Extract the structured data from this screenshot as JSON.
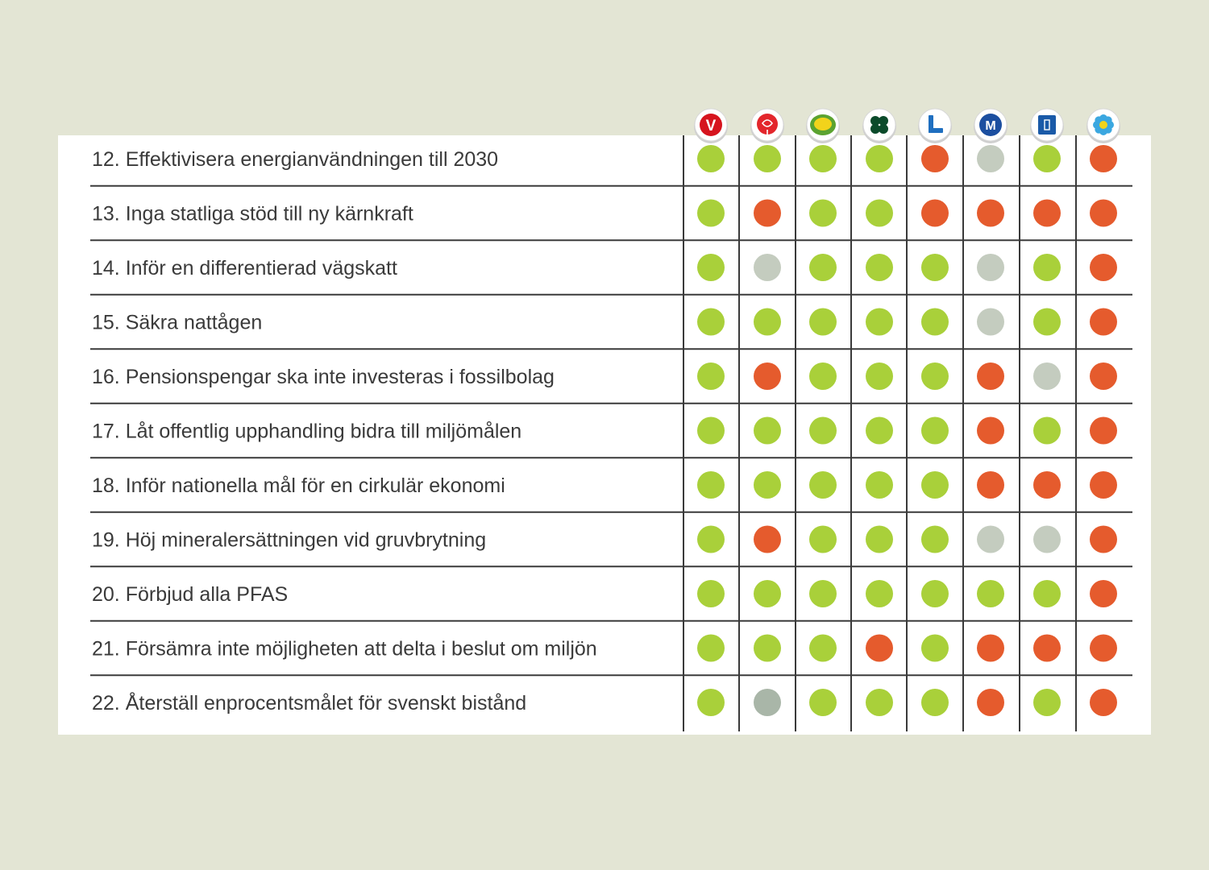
{
  "chart_data": {
    "type": "table",
    "title": "",
    "columns": [
      {
        "party": "V",
        "icon": "v-party-logo-icon",
        "color": "#d6141e",
        "glyph": "V"
      },
      {
        "party": "S",
        "icon": "s-rose-logo-icon",
        "color": "#e3262c",
        "glyph": ""
      },
      {
        "party": "MP",
        "icon": "mp-sunflower-logo-icon",
        "color": "#5ba331",
        "glyph": ""
      },
      {
        "party": "C",
        "icon": "c-clover-logo-icon",
        "color": "#0b4a2a",
        "glyph": ""
      },
      {
        "party": "L",
        "icon": "l-party-logo-icon",
        "color": "#1f6fc0",
        "glyph": "L"
      },
      {
        "party": "M",
        "icon": "m-party-logo-icon",
        "color": "#1c4fa0",
        "glyph": "M"
      },
      {
        "party": "KD",
        "icon": "kd-party-logo-icon",
        "color": "#1a5aa8",
        "glyph": ""
      },
      {
        "party": "SD",
        "icon": "sd-flower-logo-icon",
        "color": "#3ba7e0",
        "glyph": ""
      }
    ],
    "legend_colors": {
      "yes": "#a9d03a",
      "no": "#e55b2d",
      "neutral": "#c4ccbf",
      "neutral_dark": "#a9b6a8"
    },
    "rows": [
      {
        "label": "12. Effektivisera energianvändningen till 2030",
        "values": [
          "yes",
          "yes",
          "yes",
          "yes",
          "no",
          "neutral",
          "yes",
          "no"
        ]
      },
      {
        "label": "13. Inga statliga stöd till ny kärnkraft",
        "values": [
          "yes",
          "no",
          "yes",
          "yes",
          "no",
          "no",
          "no",
          "no"
        ]
      },
      {
        "label": "14. Inför en differentierad vägskatt",
        "values": [
          "yes",
          "neutral",
          "yes",
          "yes",
          "yes",
          "neutral",
          "yes",
          "no"
        ]
      },
      {
        "label": "15. Säkra nattågen",
        "values": [
          "yes",
          "yes",
          "yes",
          "yes",
          "yes",
          "neutral",
          "yes",
          "no"
        ]
      },
      {
        "label": "16. Pensionspengar ska inte investeras i fossilbolag",
        "values": [
          "yes",
          "no",
          "yes",
          "yes",
          "yes",
          "no",
          "neutral",
          "no"
        ]
      },
      {
        "label": "17. Låt offentlig upphandling bidra till miljömålen",
        "values": [
          "yes",
          "yes",
          "yes",
          "yes",
          "yes",
          "no",
          "yes",
          "no"
        ]
      },
      {
        "label": "18. Inför nationella mål för en cirkulär ekonomi",
        "values": [
          "yes",
          "yes",
          "yes",
          "yes",
          "yes",
          "no",
          "no",
          "no"
        ]
      },
      {
        "label": "19. Höj mineralersättningen vid gruvbrytning",
        "values": [
          "yes",
          "no",
          "yes",
          "yes",
          "yes",
          "neutral",
          "neutral",
          "no"
        ]
      },
      {
        "label": "20. Förbjud alla PFAS",
        "values": [
          "yes",
          "yes",
          "yes",
          "yes",
          "yes",
          "yes",
          "yes",
          "no"
        ]
      },
      {
        "label": "21. Försämra inte möjligheten att delta i beslut om miljön",
        "values": [
          "yes",
          "yes",
          "yes",
          "no",
          "yes",
          "no",
          "no",
          "no"
        ]
      },
      {
        "label": "22. Återställ enprocentsmålet för svenskt bistånd",
        "values": [
          "yes",
          "neutral_dark",
          "yes",
          "yes",
          "yes",
          "no",
          "yes",
          "no"
        ]
      }
    ]
  }
}
